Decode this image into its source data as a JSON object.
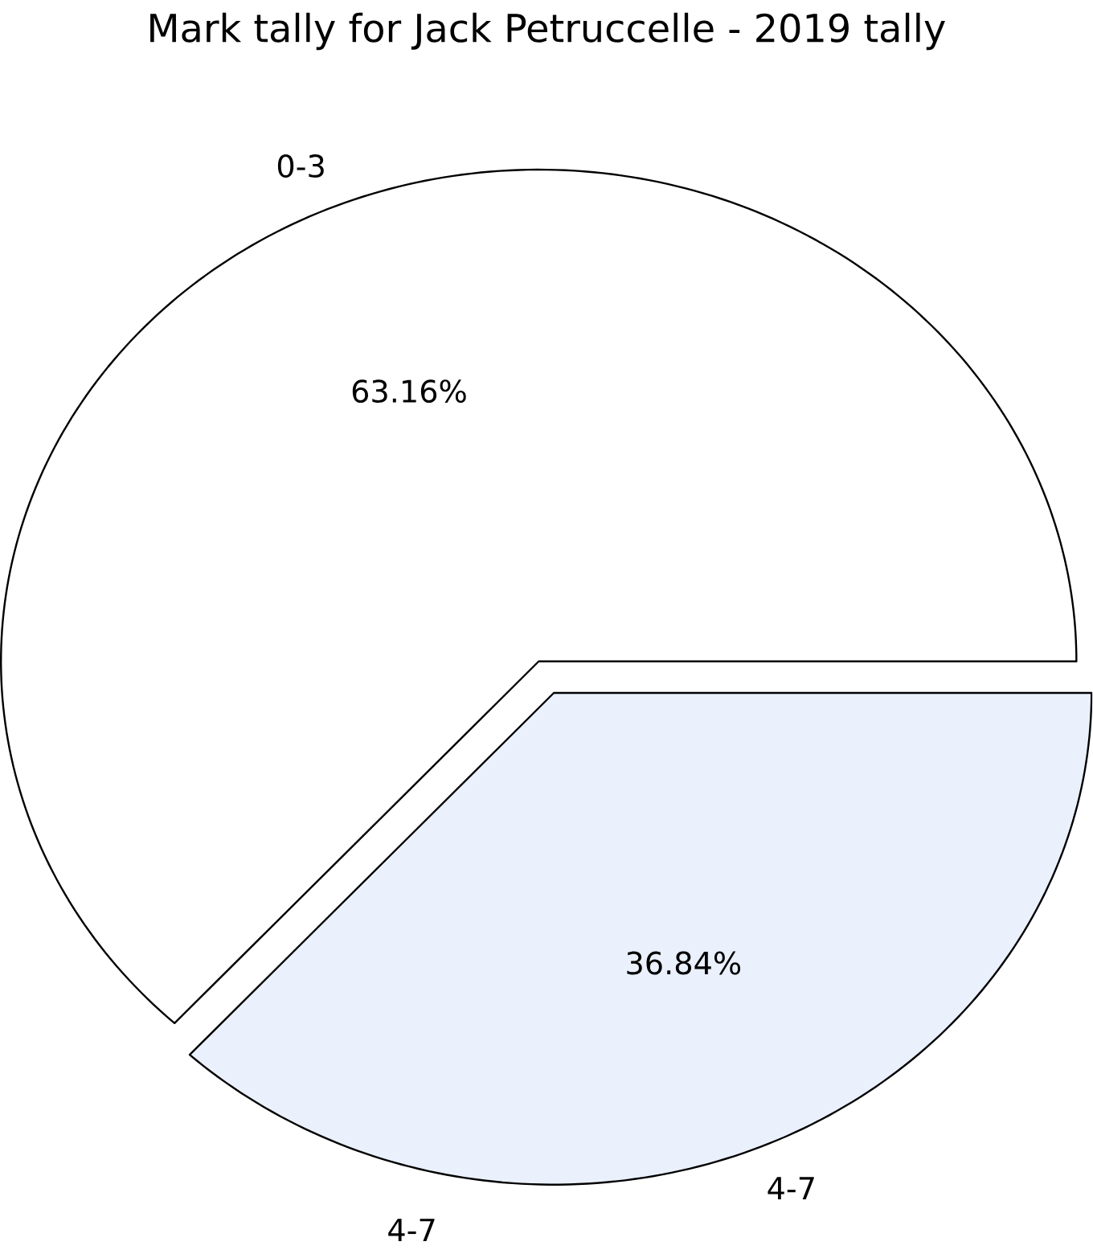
{
  "chart_data": {
    "type": "pie",
    "title": "Mark tally for Jack Petruccelle - 2019 tally",
    "categories": [
      "0-3",
      "4-7"
    ],
    "values": [
      63.16,
      36.84
    ],
    "colors": [
      "#ffffff",
      "#eaf0fc"
    ],
    "value_labels": [
      "63.16%",
      "36.84%"
    ],
    "annotations": [
      "4-7"
    ]
  }
}
